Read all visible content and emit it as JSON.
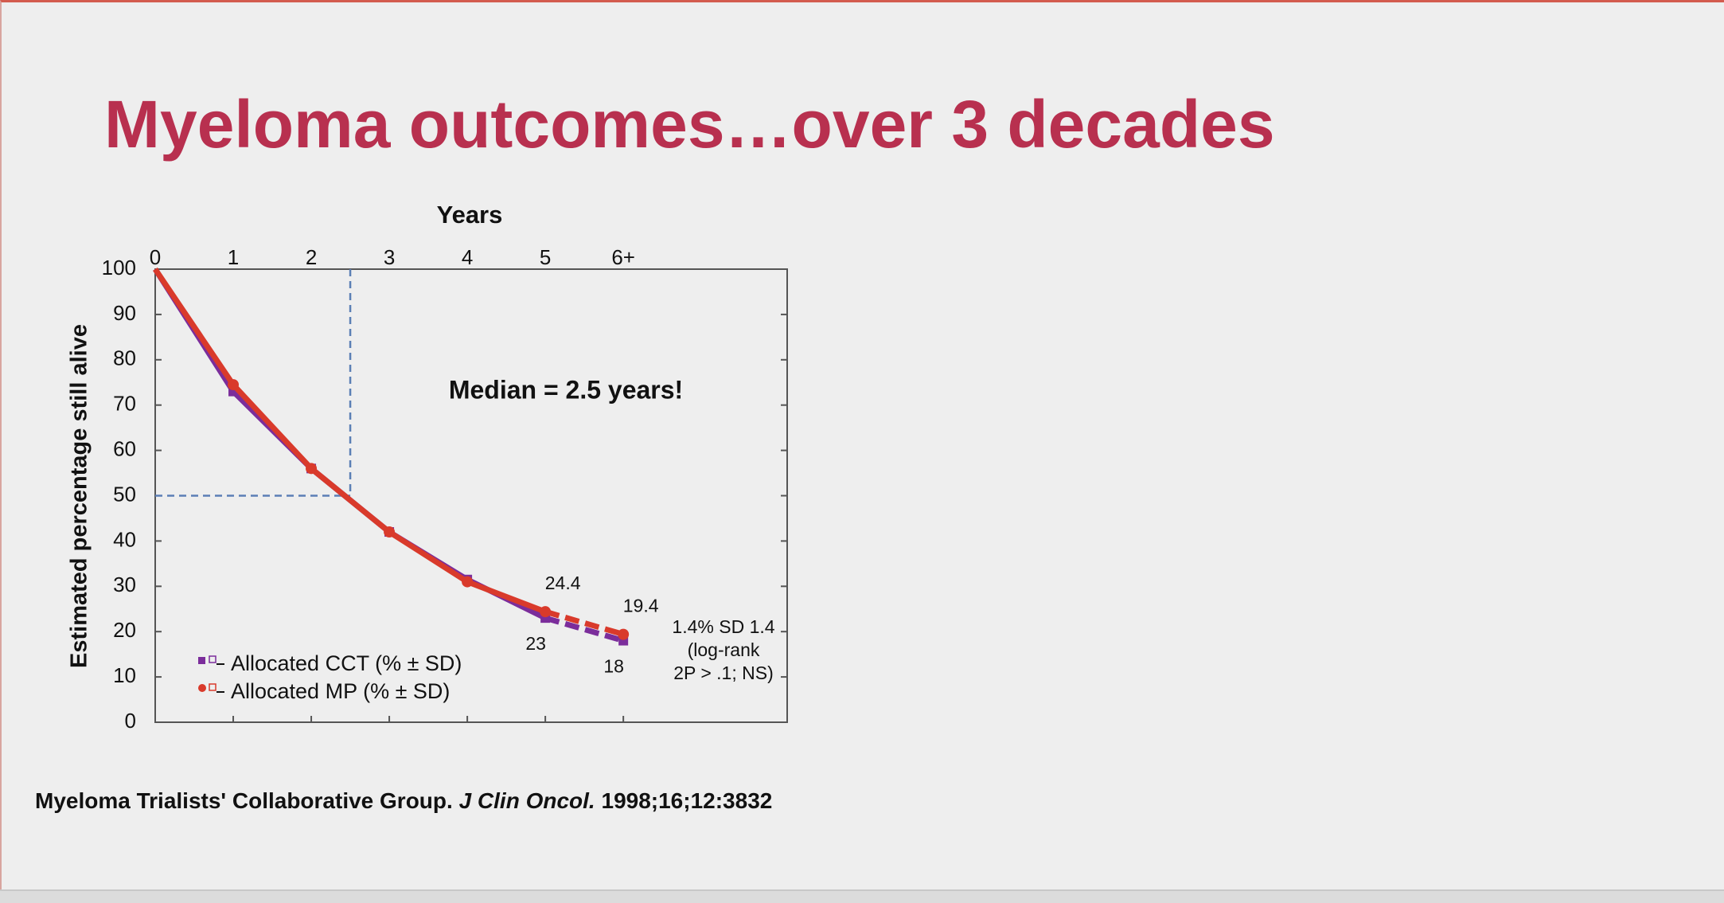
{
  "slide_title": "Myeloma outcomes…over 3 decades",
  "chart_data": {
    "type": "line",
    "xlabel": "Years",
    "ylabel": "Estimated percentage still alive",
    "x": [
      0,
      1,
      2,
      3,
      4,
      5,
      6
    ],
    "xlim": [
      0,
      8.1
    ],
    "xticks": [
      0,
      1,
      2,
      3,
      4,
      5,
      {
        "value": 6,
        "label": "6+"
      }
    ],
    "ylim": [
      0,
      100
    ],
    "yticks": [
      0,
      10,
      20,
      30,
      40,
      50,
      60,
      70,
      80,
      90,
      100
    ],
    "series": [
      {
        "name": "Allocated CCT (% ± SD)",
        "color": "#7b2d9b",
        "values": [
          100,
          73,
          56,
          42,
          31.5,
          23.0,
          18.0
        ]
      },
      {
        "name": "Allocated MP (% ± SD)",
        "color": "#d93a2b",
        "values": [
          100,
          74.5,
          56,
          42,
          31,
          24.4,
          19.4
        ]
      }
    ],
    "reference_lines": {
      "x": 2.5,
      "y": 50
    },
    "annotations": [
      "Median = 2.5 years!",
      "1.4% SD 1.4",
      "(log-rank",
      "2P > .1; NS)"
    ]
  },
  "citation": [
    "Myeloma Trialists' Collaborative Group.",
    "J Clin Oncol.",
    "1998;16;12:3832"
  ]
}
